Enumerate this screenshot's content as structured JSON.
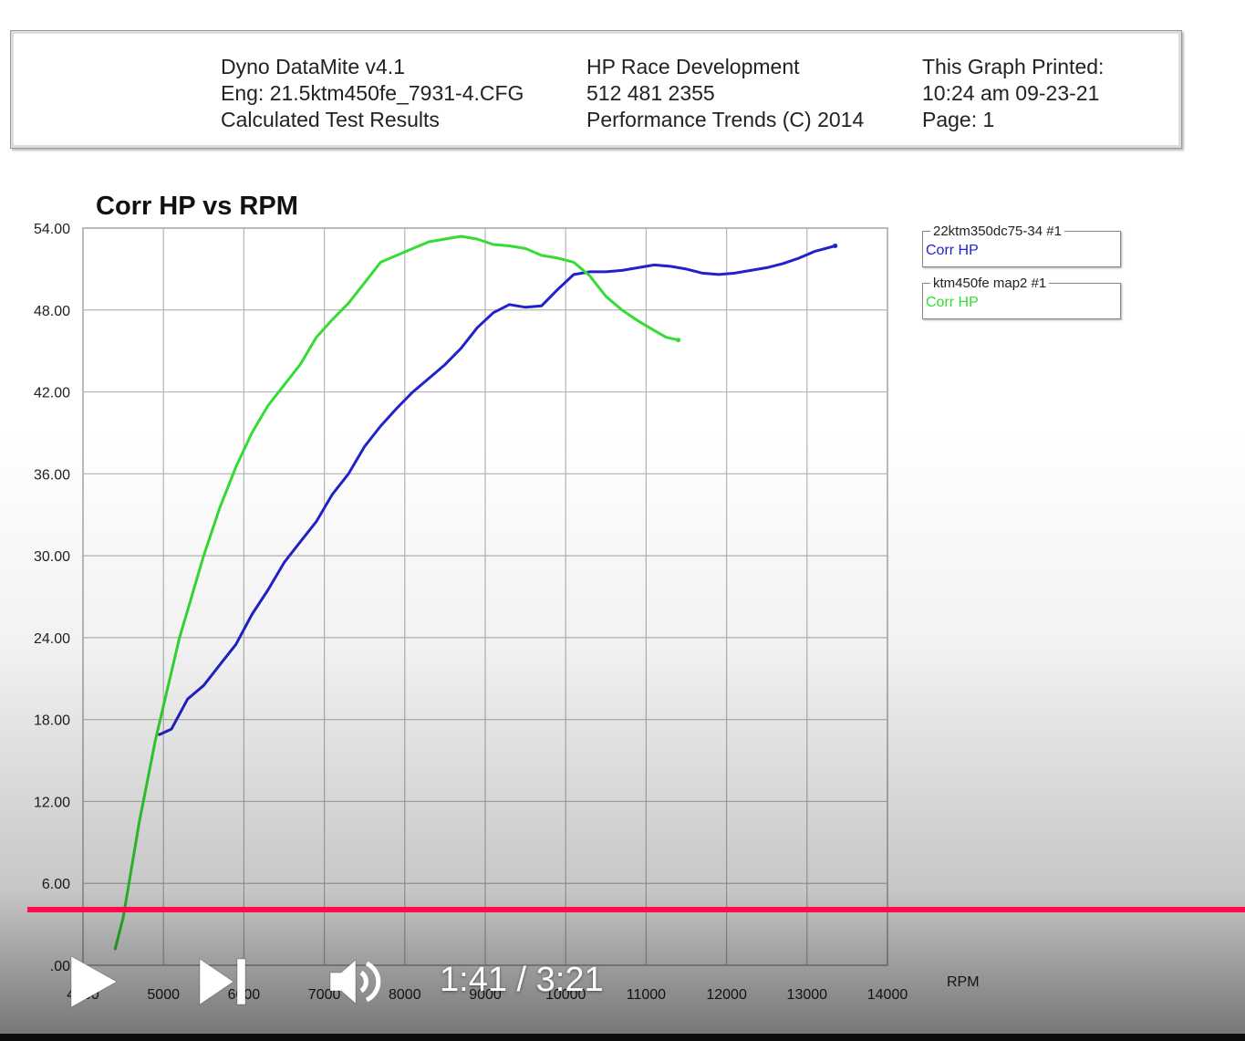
{
  "header": {
    "col1": [
      "Dyno DataMite v4.1",
      "Eng: 21.5ktm450fe_7931-4.CFG",
      "Calculated Test Results"
    ],
    "col2": [
      "HP Race Development",
      "512 481 2355",
      "Performance Trends (C) 2014"
    ],
    "col3": [
      "This Graph Printed:",
      "10:24 am 09-23-21",
      "Page: 1"
    ]
  },
  "chart_data": {
    "type": "line",
    "title": "Corr HP vs RPM",
    "xlabel": "RPM",
    "ylabel": "",
    "xlim": [
      4000,
      14000
    ],
    "ylim": [
      0,
      54
    ],
    "x_ticks": [
      "4000",
      "5000",
      "6000",
      "7000",
      "8000",
      "9000",
      "10000",
      "11000",
      "12000",
      "13000",
      "14000"
    ],
    "y_ticks": [
      ".00",
      "6.00",
      "12.00",
      "18.00",
      "24.00",
      "30.00",
      "36.00",
      "42.00",
      "48.00",
      "54.00"
    ],
    "grid": true,
    "legend_position": "right",
    "series": [
      {
        "name": "22ktm350dc75-34   #1",
        "label": "Corr HP",
        "color": "#2222cc",
        "x": [
          4950,
          5100,
          5300,
          5500,
          5700,
          5900,
          6100,
          6300,
          6500,
          6700,
          6900,
          7100,
          7300,
          7500,
          7700,
          7900,
          8100,
          8300,
          8500,
          8700,
          8900,
          9100,
          9300,
          9500,
          9700,
          9900,
          10100,
          10300,
          10500,
          10700,
          10900,
          11100,
          11300,
          11500,
          11700,
          11900,
          12100,
          12300,
          12500,
          12700,
          12900,
          13100,
          13350
        ],
        "values": [
          16.9,
          17.3,
          19.5,
          20.5,
          22.0,
          23.5,
          25.7,
          27.5,
          29.5,
          31.0,
          32.5,
          34.5,
          36.0,
          38.0,
          39.5,
          40.8,
          42.0,
          43.0,
          44.0,
          45.2,
          46.7,
          47.8,
          48.4,
          48.2,
          48.3,
          49.5,
          50.6,
          50.8,
          50.8,
          50.9,
          51.1,
          51.3,
          51.2,
          51.0,
          50.7,
          50.6,
          50.7,
          50.9,
          51.1,
          51.4,
          51.8,
          52.3,
          52.7
        ],
        "line_width": 3
      },
      {
        "name": "ktm450fe map2   #1",
        "label": "Corr HP",
        "color": "#33dd33",
        "x": [
          4400,
          4500,
          4600,
          4700,
          4800,
          4900,
          5000,
          5100,
          5200,
          5300,
          5400,
          5500,
          5700,
          5900,
          6100,
          6300,
          6500,
          6700,
          6900,
          7100,
          7300,
          7500,
          7700,
          7900,
          8100,
          8300,
          8500,
          8700,
          8900,
          9100,
          9300,
          9500,
          9700,
          9900,
          10100,
          10300,
          10500,
          10700,
          10900,
          11100,
          11250,
          11400
        ],
        "values": [
          1.2,
          3.5,
          7.0,
          10.5,
          13.5,
          16.5,
          19.0,
          21.5,
          24.0,
          26.0,
          28.0,
          30.0,
          33.5,
          36.5,
          39.0,
          41.0,
          42.5,
          44.0,
          46.0,
          47.3,
          48.5,
          50.0,
          51.5,
          52.0,
          52.5,
          53.0,
          53.2,
          53.4,
          53.2,
          52.8,
          52.7,
          52.5,
          52.0,
          51.8,
          51.5,
          50.5,
          49.0,
          48.0,
          47.2,
          46.5,
          46.0,
          45.8
        ],
        "line_width": 3
      }
    ]
  },
  "video_player": {
    "current_time": "1:41",
    "separator": "/",
    "duration": "3:21",
    "progress_fraction": 0.502,
    "accent_color": "#ff0a4a",
    "play_icon": "play-icon",
    "next_icon": "next-icon",
    "volume_icon": "volume-icon"
  }
}
